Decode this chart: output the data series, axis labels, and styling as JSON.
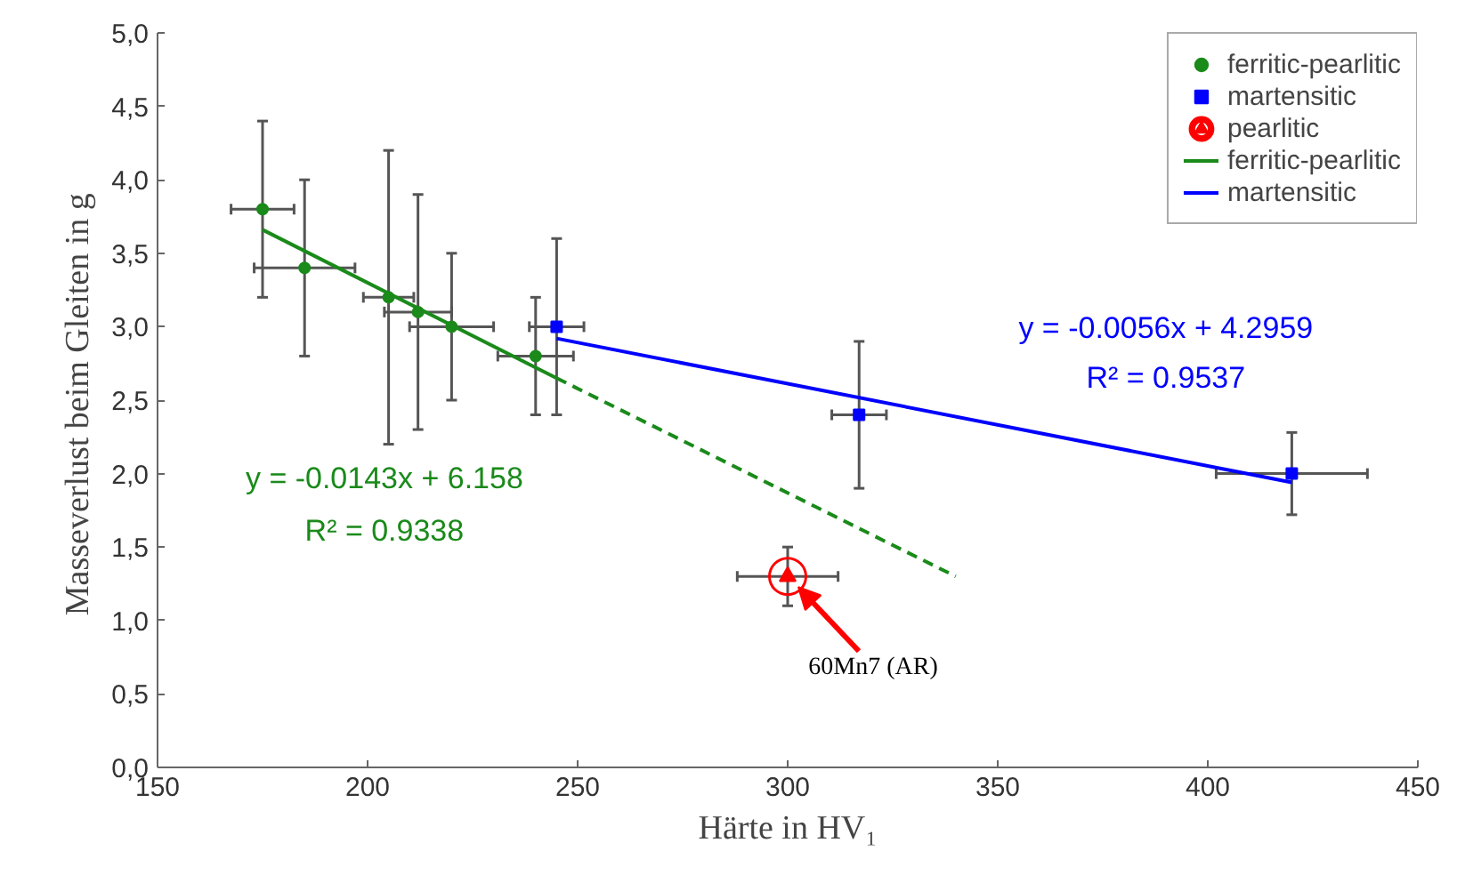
{
  "chart_data": {
    "type": "scatter",
    "xlabel": "Härte in HV₁",
    "ylabel": "Masseverlust beim Gleiten  in g",
    "xlim": [
      150,
      450
    ],
    "ylim": [
      0,
      5
    ],
    "xticks": [
      150,
      200,
      250,
      300,
      350,
      400,
      450
    ],
    "yticks": [
      {
        "value": 0,
        "label": "0,0"
      },
      {
        "value": 0.5,
        "label": "0,5"
      },
      {
        "value": 1,
        "label": "1,0"
      },
      {
        "value": 1.5,
        "label": "1,5"
      },
      {
        "value": 2,
        "label": "2,0"
      },
      {
        "value": 2.5,
        "label": "2,5"
      },
      {
        "value": 3,
        "label": "3,0"
      },
      {
        "value": 3.5,
        "label": "3,5"
      },
      {
        "value": 4,
        "label": "4,0"
      },
      {
        "value": 4.5,
        "label": "4,5"
      },
      {
        "value": 5,
        "label": "5,0"
      }
    ],
    "grid": false,
    "legend": "top right",
    "series": [
      {
        "name": "ferritic-pearlitic",
        "marker": "circle",
        "color": "#1a8a1a",
        "x": [
          175,
          185,
          205,
          212,
          220,
          240
        ],
        "values": [
          3.8,
          3.4,
          3.2,
          3.1,
          3.0,
          2.8
        ],
        "errors": [
          0.6,
          0.6,
          1.0,
          0.8,
          0.5,
          0.4
        ],
        "xerrors": [
          7.5,
          12,
          6,
          8,
          10,
          9
        ]
      },
      {
        "name": "martensitic",
        "marker": "square",
        "color": "#0000ff",
        "x": [
          245,
          317,
          420
        ],
        "values": [
          3.0,
          2.4,
          2.0
        ],
        "errors": [
          0.6,
          0.5,
          0.28
        ],
        "xerrors": [
          6.5,
          6.5,
          18
        ]
      },
      {
        "name": "pearlitic",
        "marker": "triangle",
        "color": "#ff0000",
        "x": [
          300
        ],
        "values": [
          1.3
        ],
        "errors": [
          0.2
        ],
        "xerrors": [
          12
        ]
      },
      {
        "name": "ferritic-pearlitic",
        "type": "line",
        "line_style": "solid",
        "color": "#1a8a1a",
        "x": [
          175,
          245
        ],
        "values": [
          3.66,
          2.65
        ]
      },
      {
        "type": "line",
        "line_style": "dashed",
        "color": "#1a8a1a",
        "x": [
          245,
          340
        ],
        "values": [
          2.65,
          1.3
        ]
      },
      {
        "name": "martensitic",
        "type": "line",
        "line_style": "solid",
        "color": "#0000ff",
        "x": [
          245,
          420
        ],
        "values": [
          2.92,
          1.94
        ]
      }
    ],
    "annotations": [
      "y = -0.0143x + 6.158",
      "R² = 0.9338",
      "y = -0.0056x + 4.2959",
      "R² = 0.9537",
      {
        "text": "60Mn7 (AR)",
        "x": 300,
        "y": 1.3
      }
    ]
  }
}
